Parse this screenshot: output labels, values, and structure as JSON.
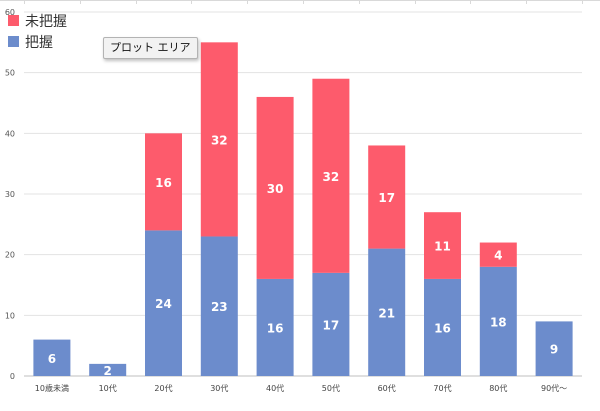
{
  "tooltip": {
    "text": "プロット エリア"
  },
  "colors": {
    "not_grasped": "#fd5b6c",
    "grasped": "#6c8ccc"
  },
  "chart_data": {
    "type": "bar",
    "stacked": true,
    "categories": [
      "10歳未満",
      "10代",
      "20代",
      "30代",
      "40代",
      "50代",
      "60代",
      "70代",
      "80代",
      "90代〜"
    ],
    "series": [
      {
        "name": "把握",
        "color": "#6c8ccc",
        "values": [
          6,
          2,
          24,
          23,
          16,
          17,
          21,
          16,
          18,
          9
        ]
      },
      {
        "name": "未把握",
        "color": "#fd5b6c",
        "values": [
          0,
          0,
          16,
          32,
          30,
          32,
          17,
          11,
          4,
          0
        ]
      }
    ],
    "legend_order": [
      "未把握",
      "把握"
    ],
    "legend_position": "top-left",
    "ylim": [
      0,
      60
    ],
    "yticks": [
      0,
      10,
      20,
      30,
      40,
      50,
      60
    ],
    "grid": true
  }
}
